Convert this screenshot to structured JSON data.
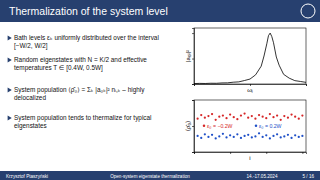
{
  "slide": {
    "title": "Thermalization of the system level",
    "bullets": [
      "Bath levels εₖ uniformly distributed over the interval [−W/2, W/2]",
      "Random eigenstates with N = K/2 and effective temperatures T ∈ [0.4W, 0.5W]",
      "System population ⟨ρ̂₀⟩ = Σₖ |a₀ₖ|² nᵢ,ₖ – highly delocalized",
      "System population tends to thermalize for typical eigenstates"
    ],
    "footer": {
      "author": "Krzysztof Ptaszyński",
      "talk": "Open-system eigenstate thermalization",
      "date": "14.-17.05.2024",
      "page": "5 / 16"
    }
  },
  "chart_data": [
    {
      "type": "line",
      "x_label": "ωⱼ",
      "y_label": "|a₀ⱼ|²",
      "color": "#000000",
      "x": [
        -0.5,
        -0.45,
        -0.4,
        -0.35,
        -0.3,
        -0.25,
        -0.2,
        -0.15,
        -0.1,
        -0.05,
        0,
        0.05,
        0.1,
        0.125,
        0.15,
        0.165,
        0.18,
        0.195,
        0.21,
        0.235,
        0.26,
        0.3,
        0.35,
        0.4,
        0.45,
        0.5
      ],
      "values": [
        0.008,
        0.012,
        0.01,
        0.015,
        0.014,
        0.021,
        0.023,
        0.035,
        0.042,
        0.068,
        0.097,
        0.18,
        0.35,
        0.55,
        0.79,
        0.95,
        1.0,
        0.93,
        0.81,
        0.53,
        0.37,
        0.19,
        0.115,
        0.066,
        0.05,
        0.032
      ],
      "xlim": [
        -0.5,
        0.5
      ],
      "ylim": [
        0,
        1.1
      ],
      "xticks": [
        -0.5,
        0,
        0.5
      ],
      "yticks": [
        0,
        0.5,
        1
      ],
      "tick_labels": false
    },
    {
      "type": "scatter",
      "x_label": "i",
      "y_label": "⟨ρ̂₀⟩",
      "legend": "center",
      "x": [
        1,
        2,
        3,
        4,
        5,
        6,
        7,
        8,
        9,
        10,
        11,
        12,
        13,
        14,
        15,
        16,
        17,
        18,
        19,
        20,
        21,
        22,
        23,
        24,
        25,
        26,
        27,
        28,
        29,
        30
      ],
      "series": [
        {
          "name": "ε₀ = −0.2W",
          "color": "#d62728",
          "marker": "circle",
          "values": [
            0.64,
            0.71,
            0.66,
            0.69,
            0.73,
            0.62,
            0.68,
            0.7,
            0.65,
            0.72,
            0.67,
            0.63,
            0.7,
            0.74,
            0.66,
            0.69,
            0.64,
            0.71,
            0.68,
            0.65,
            0.73,
            0.67,
            0.7,
            0.62,
            0.69,
            0.66,
            0.72,
            0.68,
            0.64,
            0.7
          ]
        },
        {
          "name": "ε₀ = 0.2W",
          "color": "#1f50c8",
          "marker": "circle",
          "values": [
            0.31,
            0.27,
            0.34,
            0.29,
            0.33,
            0.26,
            0.3,
            0.35,
            0.28,
            0.32,
            0.29,
            0.34,
            0.27,
            0.31,
            0.33,
            0.28,
            0.3,
            0.36,
            0.29,
            0.32,
            0.26,
            0.31,
            0.34,
            0.28,
            0.3,
            0.33,
            0.27,
            0.32,
            0.29,
            0.31
          ]
        }
      ],
      "xlim": [
        0,
        31
      ],
      "ylim": [
        0,
        1
      ],
      "xticks": [
        0,
        10,
        20,
        30
      ],
      "yticks": [
        0,
        0.5,
        1
      ],
      "tick_labels": false
    }
  ]
}
